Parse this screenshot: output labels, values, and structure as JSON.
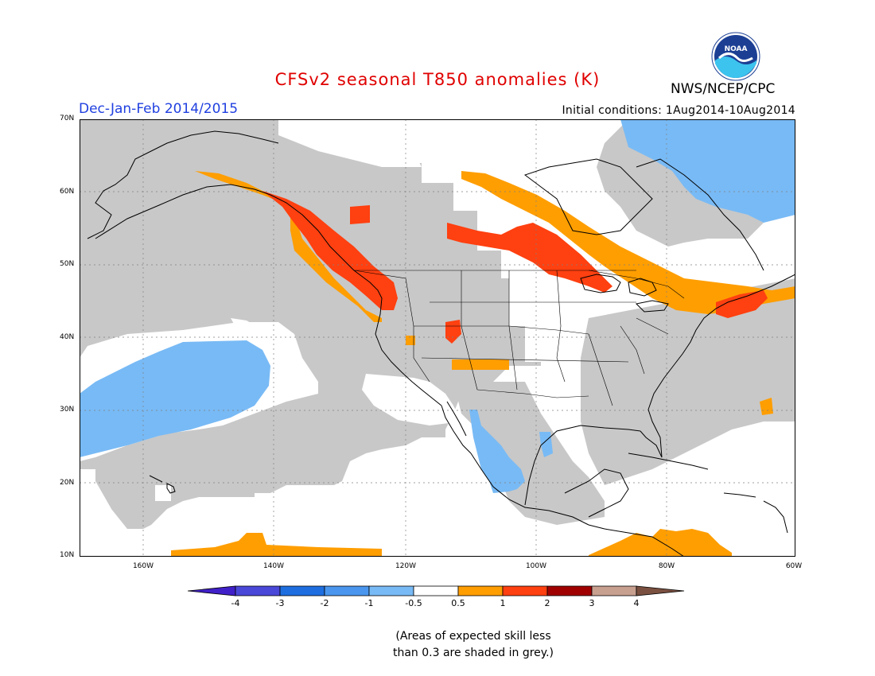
{
  "header": {
    "title": "CFSv2 seasonal T850 anomalies (K)",
    "period": "Dec-Jan-Feb 2014/2015",
    "initial_conditions": "Initial conditions: 1Aug2014-10Aug2014",
    "agency": "NWS/NCEP/CPC",
    "logo_text": "NOAA"
  },
  "map": {
    "lat_labels": [
      "70N",
      "60N",
      "50N",
      "40N",
      "30N",
      "20N",
      "10N"
    ],
    "lon_labels": [
      "160W",
      "140W",
      "120W",
      "100W",
      "80W",
      "60W"
    ],
    "extent": {
      "lon_min": -172,
      "lon_max": -60,
      "lat_min": 10,
      "lat_max": 70
    }
  },
  "colorbar": {
    "ticks": [
      "-4",
      "-3",
      "-2",
      "-1",
      "-0.5",
      "0.5",
      "1",
      "2",
      "3",
      "4"
    ],
    "colors": [
      "#4020c8",
      "#4a48d8",
      "#1e6ee0",
      "#4a96ee",
      "#78baf5",
      "#ffffff",
      "#ff9e00",
      "#ff4010",
      "#a00000",
      "#c8a090",
      "#7a5040"
    ],
    "skill_grey": "#c8c8c8"
  },
  "note": {
    "line1": "(Areas of expected skill less",
    "line2": "than 0.3 are shaded in grey.)"
  }
}
